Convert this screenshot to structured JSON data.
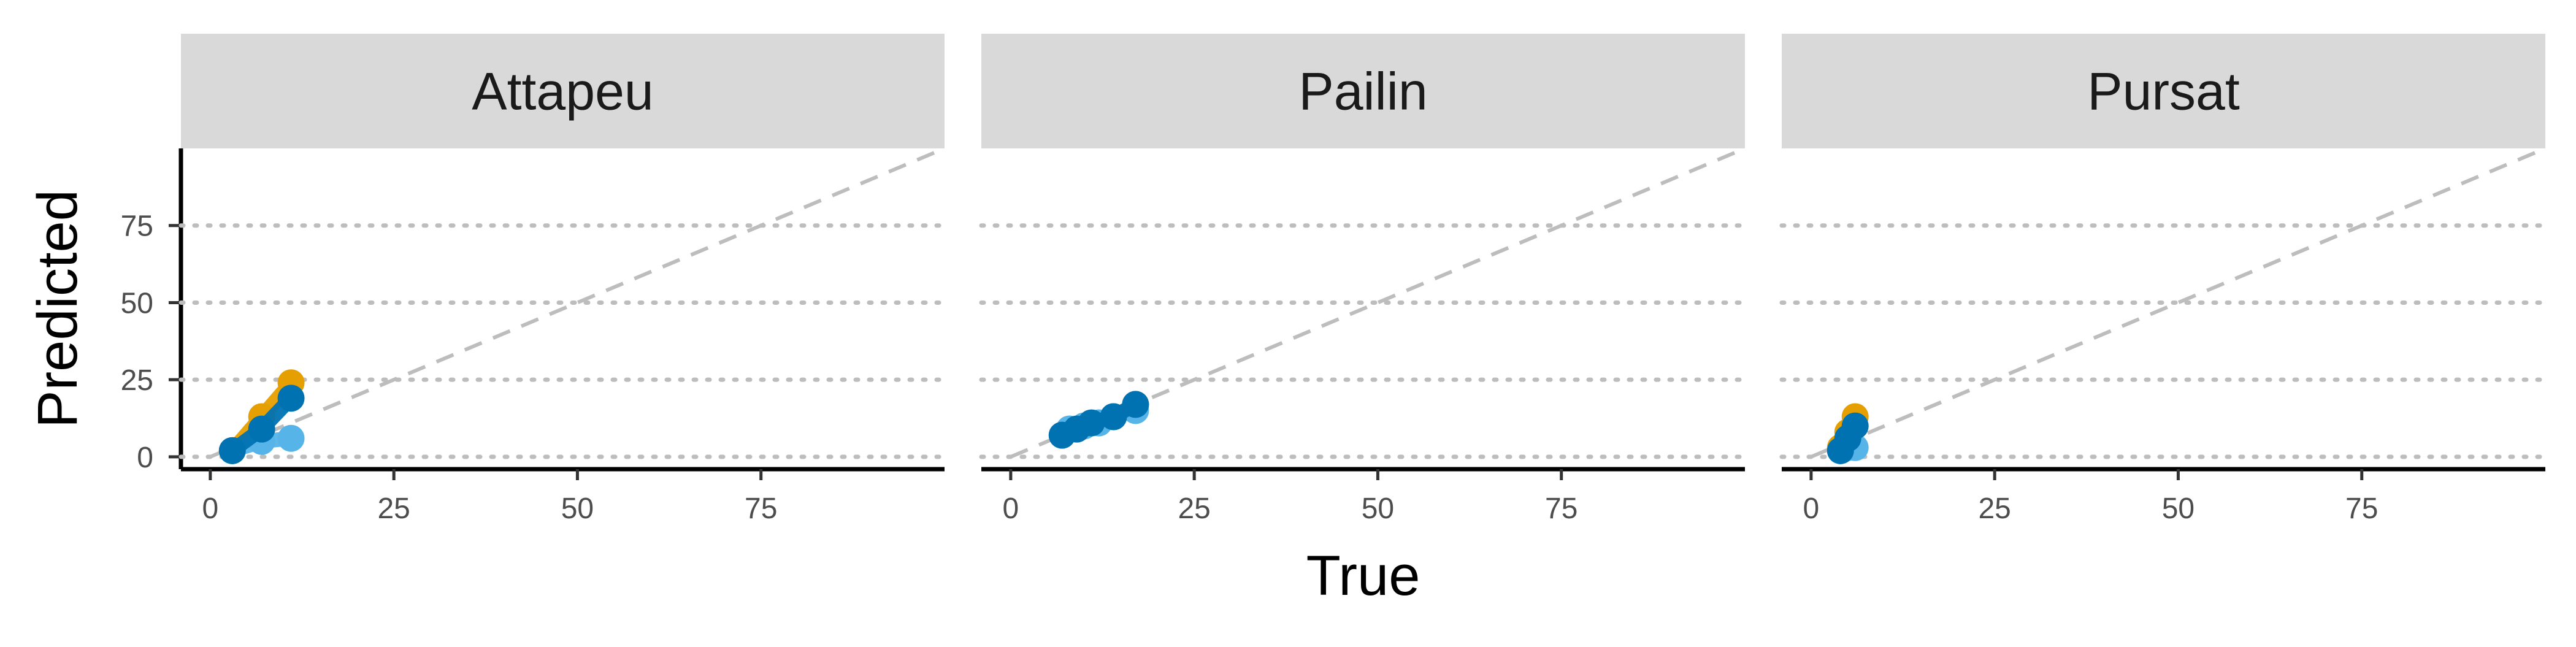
{
  "chart_data": {
    "type": "line",
    "xlabel": "True",
    "ylabel": "Predicted",
    "xlim": [
      -4,
      100
    ],
    "ylim": [
      -4,
      100
    ],
    "x_ticks": [
      0,
      25,
      50,
      75
    ],
    "y_ticks": [
      0,
      25,
      50,
      75
    ],
    "grid": "dotted horizontal at y ticks",
    "reference_line": "dashed y = x",
    "legend": "none",
    "colors": {
      "orange": "#E69F00",
      "light_blue": "#56B4E9",
      "dark_blue": "#0072B2",
      "reference": "#BDBDBD",
      "grid": "#BDBDBD",
      "strip_bg": "#D9D9D9"
    },
    "panels": [
      {
        "title": "Attapeu",
        "series": [
          {
            "color": "orange",
            "points": [
              [
                3,
                2
              ],
              [
                7,
                13
              ],
              [
                11,
                24
              ]
            ]
          },
          {
            "color": "light_blue",
            "points": [
              [
                3,
                2
              ],
              [
                7,
                5
              ],
              [
                11,
                6
              ]
            ]
          },
          {
            "color": "dark_blue",
            "points": [
              [
                3,
                2
              ],
              [
                7,
                9
              ],
              [
                11,
                19
              ]
            ]
          }
        ]
      },
      {
        "title": "Pailin",
        "series": [
          {
            "color": "orange",
            "points": [
              [
                8,
                9
              ],
              [
                10,
                10
              ],
              [
                12,
                11
              ],
              [
                14,
                13
              ],
              [
                17,
                17
              ]
            ]
          },
          {
            "color": "light_blue",
            "points": [
              [
                8,
                9
              ],
              [
                10,
                10
              ],
              [
                12,
                11
              ],
              [
                14,
                13
              ],
              [
                17,
                15
              ]
            ]
          },
          {
            "color": "dark_blue",
            "points": [
              [
                7,
                7
              ],
              [
                9,
                9
              ],
              [
                11,
                11
              ],
              [
                14,
                13
              ],
              [
                17,
                17
              ]
            ]
          }
        ]
      },
      {
        "title": "Pursat",
        "series": [
          {
            "color": "orange",
            "points": [
              [
                4,
                3
              ],
              [
                5,
                8
              ],
              [
                6,
                13
              ]
            ]
          },
          {
            "color": "light_blue",
            "points": [
              [
                4,
                2
              ],
              [
                5,
                3
              ],
              [
                6,
                3
              ]
            ]
          },
          {
            "color": "dark_blue",
            "points": [
              [
                4,
                2
              ],
              [
                5,
                6
              ],
              [
                6,
                10
              ]
            ]
          }
        ]
      }
    ]
  }
}
